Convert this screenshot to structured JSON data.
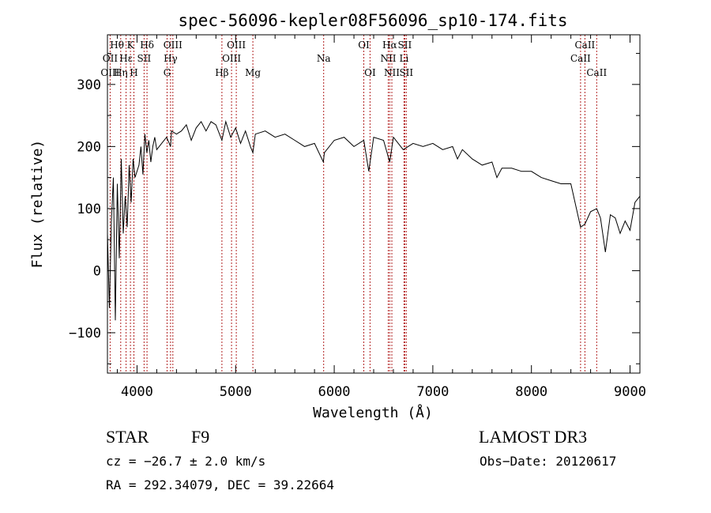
{
  "chart_data": {
    "type": "line",
    "title": "spec-56096-kepler08F56096_sp10-174.fits",
    "xlabel": "Wavelength (Å)",
    "ylabel": "Flux (relative)",
    "xlim": [
      3700,
      9100
    ],
    "ylim": [
      -165,
      380
    ],
    "xticks": [
      4000,
      5000,
      6000,
      7000,
      8000,
      9000
    ],
    "yticks": [
      -100,
      0,
      100,
      200,
      300
    ],
    "ytick_labels": [
      "−100",
      "0",
      "100",
      "200",
      "300"
    ],
    "series": [
      {
        "name": "spectrum",
        "x": [
          3700,
          3720,
          3740,
          3760,
          3780,
          3800,
          3820,
          3840,
          3860,
          3880,
          3900,
          3920,
          3940,
          3960,
          3980,
          4000,
          4020,
          4040,
          4060,
          4080,
          4100,
          4120,
          4140,
          4160,
          4180,
          4200,
          4250,
          4300,
          4340,
          4350,
          4400,
          4450,
          4500,
          4550,
          4600,
          4650,
          4700,
          4750,
          4800,
          4861,
          4900,
          4950,
          5000,
          5050,
          5100,
          5150,
          5175,
          5200,
          5300,
          5400,
          5500,
          5600,
          5700,
          5800,
          5890,
          5900,
          6000,
          6100,
          6200,
          6300,
          6350,
          6400,
          6500,
          6563,
          6600,
          6700,
          6800,
          6900,
          7000,
          7100,
          7200,
          7250,
          7300,
          7400,
          7500,
          7600,
          7650,
          7700,
          7800,
          7900,
          8000,
          8100,
          8200,
          8300,
          8400,
          8498,
          8542,
          8600,
          8662,
          8700,
          8750,
          8800,
          8850,
          8900,
          8950,
          9000,
          9050,
          9100
        ],
        "values": [
          60,
          -60,
          80,
          150,
          -80,
          140,
          20,
          180,
          60,
          120,
          70,
          170,
          110,
          180,
          150,
          160,
          170,
          200,
          155,
          220,
          190,
          210,
          175,
          200,
          215,
          195,
          205,
          215,
          200,
          225,
          220,
          225,
          235,
          210,
          230,
          240,
          225,
          240,
          235,
          210,
          240,
          215,
          230,
          205,
          225,
          200,
          190,
          220,
          225,
          215,
          220,
          210,
          200,
          205,
          175,
          190,
          210,
          215,
          200,
          210,
          160,
          215,
          210,
          175,
          215,
          195,
          205,
          200,
          205,
          195,
          200,
          180,
          195,
          180,
          170,
          175,
          150,
          165,
          165,
          160,
          160,
          150,
          145,
          140,
          140,
          70,
          75,
          95,
          100,
          85,
          30,
          90,
          85,
          60,
          80,
          65,
          110,
          120
        ]
      }
    ],
    "line_labels": [
      {
        "text": "Hθ",
        "wavelength": 3797,
        "row": 1,
        "marked": false
      },
      {
        "text": "K",
        "wavelength": 3933,
        "row": 1,
        "marked": true
      },
      {
        "text": "Hδ",
        "wavelength": 4101,
        "row": 1,
        "marked": true
      },
      {
        "text": "OIII",
        "wavelength": 4363,
        "row": 1,
        "marked": true
      },
      {
        "text": "OIII",
        "wavelength": 5007,
        "row": 1,
        "marked": true
      },
      {
        "text": "OI",
        "wavelength": 6300,
        "row": 1,
        "marked": true
      },
      {
        "text": "Hα",
        "wavelength": 6563,
        "row": 1,
        "marked": true
      },
      {
        "text": "SII",
        "wavelength": 6716,
        "row": 1,
        "marked": true
      },
      {
        "text": "CaII",
        "wavelength": 8542,
        "row": 1,
        "marked": true
      },
      {
        "text": "OII",
        "wavelength": 3727,
        "row": 2,
        "marked": true
      },
      {
        "text": "Hε",
        "wavelength": 3889,
        "row": 2,
        "marked": true
      },
      {
        "text": "SII",
        "wavelength": 4072,
        "row": 2,
        "marked": true
      },
      {
        "text": "Hγ",
        "wavelength": 4340,
        "row": 2,
        "marked": true
      },
      {
        "text": "OIII",
        "wavelength": 4959,
        "row": 2,
        "marked": true
      },
      {
        "text": "Na",
        "wavelength": 5893,
        "row": 2,
        "marked": true
      },
      {
        "text": "NII",
        "wavelength": 6548,
        "row": 2,
        "marked": true
      },
      {
        "text": "Li",
        "wavelength": 6708,
        "row": 2,
        "marked": true
      },
      {
        "text": "CaII",
        "wavelength": 8498,
        "row": 2,
        "marked": true
      },
      {
        "text": "OIII",
        "wavelength": 3727,
        "row": 3,
        "marked": false
      },
      {
        "text": "Hη",
        "wavelength": 3835,
        "row": 3,
        "marked": true
      },
      {
        "text": "H",
        "wavelength": 3968,
        "row": 3,
        "marked": true
      },
      {
        "text": "G",
        "wavelength": 4305,
        "row": 3,
        "marked": true
      },
      {
        "text": "Hβ",
        "wavelength": 4861,
        "row": 3,
        "marked": true
      },
      {
        "text": "Mg",
        "wavelength": 5175,
        "row": 3,
        "marked": true
      },
      {
        "text": "OI",
        "wavelength": 6363,
        "row": 3,
        "marked": true
      },
      {
        "text": "NII",
        "wavelength": 6584,
        "row": 3,
        "marked": true
      },
      {
        "text": "SII",
        "wavelength": 6731,
        "row": 3,
        "marked": true
      },
      {
        "text": "CaII",
        "wavelength": 8662,
        "row": 3,
        "marked": true
      }
    ]
  },
  "info": {
    "object_class": "STAR",
    "subclass": "F9",
    "survey": "LAMOST DR3",
    "cz": "cz = −26.7 ± 2.0 km/s",
    "obs_date": "Obs−Date: 20120617",
    "coords": "RA = 292.34079, DEC =  39.22664"
  },
  "colors": {
    "line_marker": "#b22222",
    "spectrum": "#000000"
  }
}
